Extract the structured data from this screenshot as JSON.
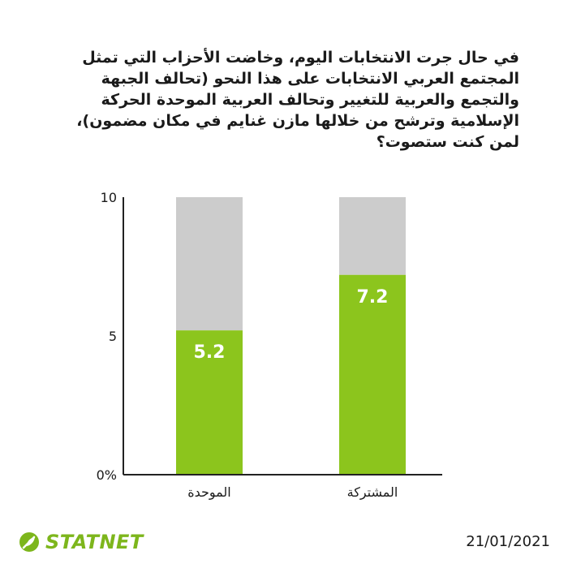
{
  "question": "في حال جرت الانتخابات اليوم، وخاضت الأحزاب التي تمثل المجتمع العربي الانتخابات على هذا النحو (تحالف الجبهة والتجمع والعربية للتغيير وتحالف العربية الموحدة الحركة الإسلامية وترشح من خلالها مازن غنايم في مكان مضمون)، لمن كنت ستصوت؟",
  "date": "21/01/2021",
  "brand": "STATNET",
  "colors": {
    "bar": "#8cc51d",
    "remainder": "#cccccc",
    "axis": "#222222",
    "brand": "#7db61c"
  },
  "chart_data": {
    "type": "bar",
    "stacked_remainder_to": 10,
    "categories": [
      "الموحدة",
      "المشتركة"
    ],
    "values": [
      5.2,
      7.2
    ],
    "value_labels": [
      "5.2",
      "7.2"
    ],
    "yticks": [
      0,
      5,
      10
    ],
    "ytick_labels": [
      "0%",
      "5",
      "10"
    ],
    "ylim": [
      0,
      10
    ],
    "grid": false
  }
}
